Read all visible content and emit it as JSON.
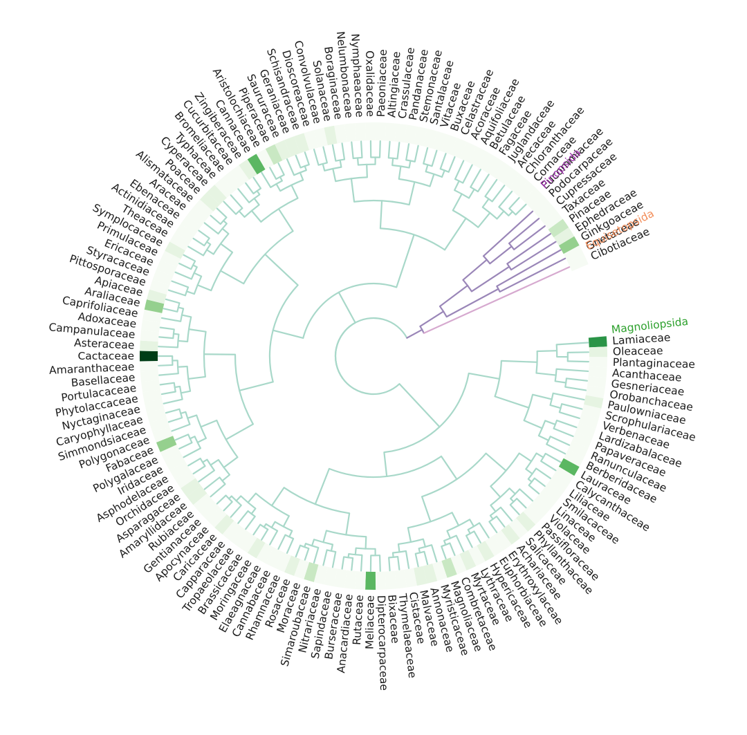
{
  "chart_data": {
    "type": "circular-phylogenetic-tree-with-heatmap-ring",
    "clades": [
      {
        "name": "Magnoliopsida",
        "color": "#2ca02c",
        "branch_color": "#a8d8c9"
      },
      {
        "name": "Pinopsida",
        "color": "#9b30a9",
        "branch_color": "#9a86b8"
      },
      {
        "name": "Equisetopsida",
        "color": "#f28e5b",
        "branch_color": "#d6a9cf"
      }
    ],
    "heat_colors": [
      "#f6fbf4",
      "#e6f4e2",
      "#c9e8c3",
      "#95d08e",
      "#5bb762",
      "#2a9447",
      "#003d16"
    ],
    "taxa": [
      {
        "name": "Lamiaceae",
        "clade": 0,
        "v": 5
      },
      {
        "name": "Oleaceae",
        "clade": 0,
        "v": 1
      },
      {
        "name": "Plantaginaceae",
        "clade": 0,
        "v": 0
      },
      {
        "name": "Acanthaceae",
        "clade": 0,
        "v": 0
      },
      {
        "name": "Gesneriaceae",
        "clade": 0,
        "v": 0
      },
      {
        "name": "Orobanchaceae",
        "clade": 0,
        "v": 0
      },
      {
        "name": "Paulowniaceae",
        "clade": 0,
        "v": 1
      },
      {
        "name": "Scrophulariaceae",
        "clade": 0,
        "v": 0
      },
      {
        "name": "Verbenaceae",
        "clade": 0,
        "v": 0
      },
      {
        "name": "Lardizabalaceae",
        "clade": 0,
        "v": 0
      },
      {
        "name": "Papaveraceae",
        "clade": 0,
        "v": 0
      },
      {
        "name": "Ranunculaceae",
        "clade": 0,
        "v": 0
      },
      {
        "name": "Berberidaceae",
        "clade": 0,
        "v": 0
      },
      {
        "name": "Lauraceae",
        "clade": 0,
        "v": 4
      },
      {
        "name": "Calycanthaceae",
        "clade": 0,
        "v": 0
      },
      {
        "name": "Liliaceae",
        "clade": 0,
        "v": 0
      },
      {
        "name": "Smilacaceae",
        "clade": 0,
        "v": 0
      },
      {
        "name": "Linaceae",
        "clade": 0,
        "v": 0
      },
      {
        "name": "Violaceae",
        "clade": 0,
        "v": 0
      },
      {
        "name": "Passifloraceae",
        "clade": 0,
        "v": 0
      },
      {
        "name": "Phyllanthaceae",
        "clade": 0,
        "v": 1
      },
      {
        "name": "Salicaceae",
        "clade": 0,
        "v": 0
      },
      {
        "name": "Achariaceae",
        "clade": 0,
        "v": 1
      },
      {
        "name": "Erythroxylaceae",
        "clade": 0,
        "v": 0
      },
      {
        "name": "Euphorbiaceae",
        "clade": 0,
        "v": 0
      },
      {
        "name": "Hypericaceae",
        "clade": 0,
        "v": 1
      },
      {
        "name": "Lythraceae",
        "clade": 0,
        "v": 0
      },
      {
        "name": "Myrtaceae",
        "clade": 0,
        "v": 1
      },
      {
        "name": "Combretaceae",
        "clade": 0,
        "v": 0
      },
      {
        "name": "Magnoliaceae",
        "clade": 0,
        "v": 2
      },
      {
        "name": "Myristicaceae",
        "clade": 0,
        "v": 0
      },
      {
        "name": "Annonaceae",
        "clade": 0,
        "v": 1
      },
      {
        "name": "Malvaceae",
        "clade": 0,
        "v": 1
      },
      {
        "name": "Cistaceae",
        "clade": 0,
        "v": 0
      },
      {
        "name": "Thymelaeaceae",
        "clade": 0,
        "v": 0
      },
      {
        "name": "Bixaceae",
        "clade": 0,
        "v": 0
      },
      {
        "name": "Dipterocarpaceae",
        "clade": 0,
        "v": 0
      },
      {
        "name": "Meliaceae",
        "clade": 0,
        "v": 4
      },
      {
        "name": "Rutaceae",
        "clade": 0,
        "v": 0
      },
      {
        "name": "Anacardiaceae",
        "clade": 0,
        "v": 0
      },
      {
        "name": "Burseraceae",
        "clade": 0,
        "v": 0
      },
      {
        "name": "Sapindaceae",
        "clade": 0,
        "v": 0
      },
      {
        "name": "Nitrariaceae",
        "clade": 0,
        "v": 0
      },
      {
        "name": "Simaroubaceae",
        "clade": 0,
        "v": 2
      },
      {
        "name": "Moraceae",
        "clade": 0,
        "v": 0
      },
      {
        "name": "Rosaceae",
        "clade": 0,
        "v": 1
      },
      {
        "name": "Rhamnaceae",
        "clade": 0,
        "v": 0
      },
      {
        "name": "Cannabaceae",
        "clade": 0,
        "v": 0
      },
      {
        "name": "Elaeagnaceae",
        "clade": 0,
        "v": 0
      },
      {
        "name": "Moringaceae",
        "clade": 0,
        "v": 1
      },
      {
        "name": "Brassicaceae",
        "clade": 0,
        "v": 0
      },
      {
        "name": "Tropaeolaceae",
        "clade": 0,
        "v": 0
      },
      {
        "name": "Capparaceae",
        "clade": 0,
        "v": 0
      },
      {
        "name": "Caricaceae",
        "clade": 0,
        "v": 1
      },
      {
        "name": "Apocynaceae",
        "clade": 0,
        "v": 0
      },
      {
        "name": "Gentianaceae",
        "clade": 0,
        "v": 0
      },
      {
        "name": "Rubiaceae",
        "clade": 0,
        "v": 0
      },
      {
        "name": "Amaryllidaceae",
        "clade": 0,
        "v": 1
      },
      {
        "name": "Asparagaceae",
        "clade": 0,
        "v": 1
      },
      {
        "name": "Orchidaceae",
        "clade": 0,
        "v": 0
      },
      {
        "name": "Asphodelaceae",
        "clade": 0,
        "v": 0
      },
      {
        "name": "Iridaceae",
        "clade": 0,
        "v": 0
      },
      {
        "name": "Polygalaceae",
        "clade": 0,
        "v": 0
      },
      {
        "name": "Fabaceae",
        "clade": 0,
        "v": 3
      },
      {
        "name": "Polygonaceae",
        "clade": 0,
        "v": 0
      },
      {
        "name": "Simmondsiaceae",
        "clade": 0,
        "v": 0
      },
      {
        "name": "Caryophyllaceae",
        "clade": 0,
        "v": 0
      },
      {
        "name": "Nyctaginaceae",
        "clade": 0,
        "v": 0
      },
      {
        "name": "Phytolaccaceae",
        "clade": 0,
        "v": 0
      },
      {
        "name": "Portulacaceae",
        "clade": 0,
        "v": 0
      },
      {
        "name": "Basellaceae",
        "clade": 0,
        "v": 0
      },
      {
        "name": "Amaranthaceae",
        "clade": 0,
        "v": 0
      },
      {
        "name": "Cactaceae",
        "clade": 0,
        "v": 6
      },
      {
        "name": "Asteraceae",
        "clade": 0,
        "v": 1
      },
      {
        "name": "Campanulaceae",
        "clade": 0,
        "v": 0
      },
      {
        "name": "Adoxaceae",
        "clade": 0,
        "v": 0
      },
      {
        "name": "Caprifoliaceae",
        "clade": 0,
        "v": 0
      },
      {
        "name": "Araliaceae",
        "clade": 0,
        "v": 3
      },
      {
        "name": "Apiaceae",
        "clade": 0,
        "v": 1
      },
      {
        "name": "Pittosporaceae",
        "clade": 0,
        "v": 0
      },
      {
        "name": "Styracaceae",
        "clade": 0,
        "v": 0
      },
      {
        "name": "Ericaceae",
        "clade": 0,
        "v": 0
      },
      {
        "name": "Primulaceae",
        "clade": 0,
        "v": 0
      },
      {
        "name": "Symplocaceae",
        "clade": 0,
        "v": 1
      },
      {
        "name": "Theaceae",
        "clade": 0,
        "v": 0
      },
      {
        "name": "Actinidiaceae",
        "clade": 0,
        "v": 0
      },
      {
        "name": "Ebenaceae",
        "clade": 0,
        "v": 0
      },
      {
        "name": "Araceae",
        "clade": 0,
        "v": 0
      },
      {
        "name": "Alismataceae",
        "clade": 0,
        "v": 0
      },
      {
        "name": "Poaceae",
        "clade": 0,
        "v": 1
      },
      {
        "name": "Cyperaceae",
        "clade": 0,
        "v": 1
      },
      {
        "name": "Typhaceae",
        "clade": 0,
        "v": 0
      },
      {
        "name": "Bromeliaceae",
        "clade": 0,
        "v": 0
      },
      {
        "name": "Cucurbitaceae",
        "clade": 0,
        "v": 0
      },
      {
        "name": "Zingiberaceae",
        "clade": 0,
        "v": 1
      },
      {
        "name": "Cannaceae",
        "clade": 0,
        "v": 4
      },
      {
        "name": "Aristolochiaceae",
        "clade": 0,
        "v": 0
      },
      {
        "name": "Piperaceae",
        "clade": 0,
        "v": 2
      },
      {
        "name": "Saururaceae",
        "clade": 0,
        "v": 1
      },
      {
        "name": "Geraniaceae",
        "clade": 0,
        "v": 1
      },
      {
        "name": "Schisandraceae",
        "clade": 0,
        "v": 1
      },
      {
        "name": "Dioscoreaceae",
        "clade": 0,
        "v": 0
      },
      {
        "name": "Convolvulaceae",
        "clade": 0,
        "v": 0
      },
      {
        "name": "Solanaceae",
        "clade": 0,
        "v": 1
      },
      {
        "name": "Boraginaceae",
        "clade": 0,
        "v": 0
      },
      {
        "name": "Nelumbonaceae",
        "clade": 0,
        "v": 0
      },
      {
        "name": "Nymphaeaceae",
        "clade": 0,
        "v": 0
      },
      {
        "name": "Oxalidaceae",
        "clade": 0,
        "v": 0
      },
      {
        "name": "Paeoniaceae",
        "clade": 0,
        "v": 0
      },
      {
        "name": "Altingiaceae",
        "clade": 0,
        "v": 0
      },
      {
        "name": "Crassulaceae",
        "clade": 0,
        "v": 0
      },
      {
        "name": "Pandanaceae",
        "clade": 0,
        "v": 0
      },
      {
        "name": "Stemonaceae",
        "clade": 0,
        "v": 0
      },
      {
        "name": "Santalaceae",
        "clade": 0,
        "v": 0
      },
      {
        "name": "Vitaceae",
        "clade": 0,
        "v": 0
      },
      {
        "name": "Buxaceae",
        "clade": 0,
        "v": 0
      },
      {
        "name": "Celastraceae",
        "clade": 0,
        "v": 0
      },
      {
        "name": "Acoraceae",
        "clade": 0,
        "v": 0
      },
      {
        "name": "Aquifoliaceae",
        "clade": 0,
        "v": 0
      },
      {
        "name": "Betulaceae",
        "clade": 0,
        "v": 0
      },
      {
        "name": "Fagaceae",
        "clade": 0,
        "v": 0
      },
      {
        "name": "Juglandaceae",
        "clade": 0,
        "v": 0
      },
      {
        "name": "Arecaceae",
        "clade": 0,
        "v": 0
      },
      {
        "name": "Chloranthaceae",
        "clade": 0,
        "v": 0
      },
      {
        "name": "Cornaceae",
        "clade": 0,
        "v": 0
      },
      {
        "name": "Eucommiaceae",
        "clade": 0,
        "v": 0
      },
      {
        "name": "Podocarpaceae",
        "clade": 1,
        "v": 0
      },
      {
        "name": "Cupressaceae",
        "clade": 1,
        "v": 0
      },
      {
        "name": "Taxaceae",
        "clade": 1,
        "v": 0
      },
      {
        "name": "Pinaceae",
        "clade": 1,
        "v": 2
      },
      {
        "name": "Ephedraceae",
        "clade": 1,
        "v": 1
      },
      {
        "name": "Ginkgoaceae",
        "clade": 1,
        "v": 3
      },
      {
        "name": "Gnetaceae",
        "clade": 1,
        "v": 0
      },
      {
        "name": "Cibotiaceae",
        "clade": 2,
        "v": 0
      }
    ]
  }
}
